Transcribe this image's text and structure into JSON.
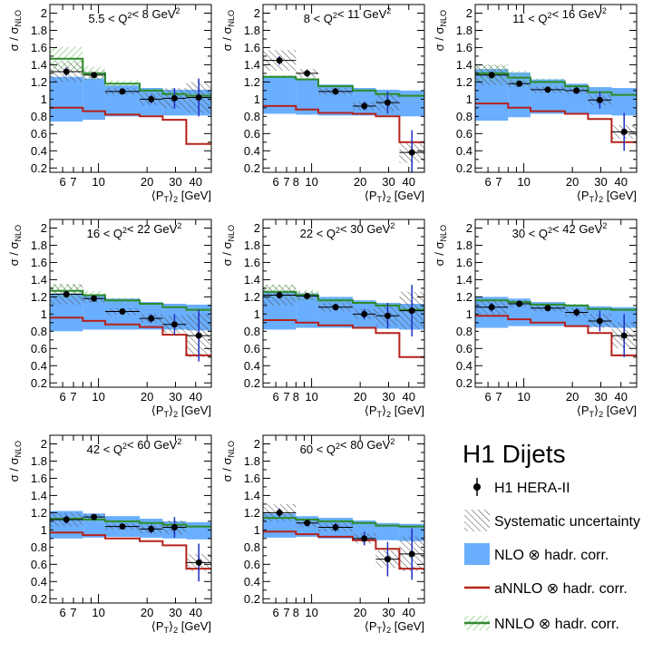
{
  "legend": {
    "title": "H1 Dijets",
    "entries": [
      {
        "label": "H1 HERA-II",
        "kind": "data"
      },
      {
        "label": "Systematic uncertainty",
        "kind": "hatch"
      },
      {
        "label": "NLO ⊗ hadr. corr.",
        "kind": "band",
        "color": "#6aaeff"
      },
      {
        "label": "aNNLO ⊗ hadr. corr.",
        "kind": "line",
        "color": "#b5221b"
      },
      {
        "label": "NNLO ⊗ hadr. corr.",
        "kind": "nnlo",
        "color": "#2e8b2e"
      }
    ]
  },
  "chart_data": {
    "type": "bar",
    "y_tick_labels": [
      "0.2",
      "0.4",
      "0.6",
      "0.8",
      "1",
      "1.2",
      "1.4",
      "1.6",
      "1.8",
      "2"
    ],
    "x_tick_labels": [
      "6",
      "7",
      "8",
      "10",
      "20",
      "30",
      "40"
    ],
    "x_bins": [
      [
        5,
        8
      ],
      [
        8,
        11
      ],
      [
        11,
        18
      ],
      [
        18,
        25
      ],
      [
        25,
        35
      ],
      [
        35,
        50
      ]
    ],
    "ylim": [
      0.15,
      2.1
    ],
    "panels": [
      {
        "label": "5.5 < Q²< 8 GeV²",
        "x_ticks": [
          "6",
          "7",
          "10",
          "20",
          "30",
          "40"
        ],
        "data": [
          1.32,
          1.28,
          1.09,
          1.0,
          1.01,
          1.02
        ],
        "stat": [
          0.05,
          0.03,
          0.03,
          0.05,
          0.12,
          0.22
        ],
        "sys": [
          0.12,
          0.05,
          0.04,
          0.07,
          0.12,
          0.18
        ],
        "nlo": [
          1.0,
          1.0,
          0.98,
          0.97,
          0.96,
          0.96
        ],
        "nlo_half": [
          0.26,
          0.24,
          0.18,
          0.16,
          0.15,
          0.15
        ],
        "annlo": [
          0.9,
          0.86,
          0.82,
          0.8,
          0.76,
          0.48
        ],
        "nnlo": [
          1.47,
          1.3,
          1.18,
          1.1,
          1.06,
          1.04
        ],
        "nnlo_half": [
          0.14,
          0.08,
          0.04,
          0.03,
          0.03,
          0.03
        ],
        "x_label": "⟨P",
        "x_label_sub1": "T",
        "x_label_mid": "⟩",
        "x_label_sub2": "2",
        "x_label_unit": " [GeV]",
        "y_label_main": "σ / σ",
        "y_label_sub": "NLO"
      },
      {
        "label": "8 < Q²< 11 GeV²",
        "x_ticks": [
          "6",
          "7",
          "8",
          "10",
          "20",
          "30",
          "40"
        ],
        "data": [
          1.45,
          1.3,
          1.09,
          0.92,
          0.96,
          0.38
        ],
        "stat": [
          0.05,
          0.04,
          0.04,
          0.05,
          0.13,
          0.26
        ],
        "sys": [
          0.12,
          0.05,
          0.04,
          0.05,
          0.1,
          0.12
        ],
        "nlo": [
          1.05,
          1.02,
          0.99,
          0.97,
          0.96,
          0.95
        ],
        "nlo_half": [
          0.22,
          0.2,
          0.18,
          0.16,
          0.15,
          0.15
        ],
        "annlo": [
          0.92,
          0.88,
          0.84,
          0.83,
          0.8,
          0.5
        ],
        "nnlo": [
          1.26,
          1.23,
          1.15,
          1.1,
          1.06,
          1.04
        ],
        "nnlo_half": [
          0.02,
          0.02,
          0.02,
          0.02,
          0.02,
          0.02
        ],
        "x_label": "⟨P",
        "x_label_sub1": "T",
        "x_label_mid": "⟩",
        "x_label_sub2": "2",
        "x_label_unit": " [GeV]",
        "y_label_main": "σ / σ",
        "y_label_sub": "NLO"
      },
      {
        "label": "11 < Q²< 16 GeV²",
        "x_ticks": [
          "6",
          "7",
          "10",
          "20",
          "30",
          "40"
        ],
        "data": [
          1.28,
          1.18,
          1.11,
          1.1,
          0.99,
          0.62
        ],
        "stat": [
          0.04,
          0.03,
          0.03,
          0.04,
          0.1,
          0.22
        ],
        "sys": [
          0.12,
          0.04,
          0.04,
          0.04,
          0.06,
          0.08
        ],
        "nlo": [
          1.05,
          1.05,
          1.03,
          1.0,
          0.98,
          0.97
        ],
        "nlo_half": [
          0.3,
          0.26,
          0.2,
          0.18,
          0.16,
          0.16
        ],
        "annlo": [
          0.95,
          0.9,
          0.86,
          0.83,
          0.77,
          0.5
        ],
        "nnlo": [
          1.3,
          1.25,
          1.2,
          1.15,
          1.08,
          1.05
        ],
        "nnlo_half": [
          0.1,
          0.08,
          0.04,
          0.02,
          0.02,
          0.02
        ],
        "x_label": "⟨P",
        "x_label_sub1": "T",
        "x_label_mid": "⟩",
        "x_label_sub2": "2",
        "x_label_unit": " [GeV]",
        "y_label_main": "σ / σ",
        "y_label_sub": "NLO"
      },
      {
        "label": "16 < Q²< 22 GeV²",
        "x_ticks": [
          "6",
          "7",
          "10",
          "20",
          "30",
          "40"
        ],
        "data": [
          1.23,
          1.18,
          1.03,
          0.95,
          0.88,
          0.75
        ],
        "stat": [
          0.04,
          0.03,
          0.03,
          0.05,
          0.12,
          0.3
        ],
        "sys": [
          0.12,
          0.05,
          0.04,
          0.05,
          0.1,
          0.25
        ],
        "nlo": [
          1.02,
          1.02,
          1.0,
          0.98,
          0.97,
          0.96
        ],
        "nlo_half": [
          0.22,
          0.2,
          0.18,
          0.16,
          0.15,
          0.15
        ],
        "annlo": [
          0.96,
          0.92,
          0.88,
          0.85,
          0.76,
          0.52
        ],
        "nnlo": [
          1.27,
          1.22,
          1.16,
          1.12,
          1.08,
          1.05
        ],
        "nnlo_half": [
          0.08,
          0.05,
          0.03,
          0.02,
          0.02,
          0.02
        ],
        "x_label": "⟨P",
        "x_label_sub1": "T",
        "x_label_mid": "⟩",
        "x_label_sub2": "2",
        "x_label_unit": " [GeV]",
        "y_label_main": "σ / σ",
        "y_label_sub": "NLO"
      },
      {
        "label": "22 < Q²< 30 GeV²",
        "x_ticks": [
          "6",
          "7",
          "8",
          "10",
          "20",
          "30",
          "40"
        ],
        "data": [
          1.22,
          1.21,
          1.08,
          1.0,
          0.98,
          1.04
        ],
        "stat": [
          0.04,
          0.03,
          0.04,
          0.06,
          0.15,
          0.3
        ],
        "sys": [
          0.12,
          0.05,
          0.05,
          0.06,
          0.12,
          0.22
        ],
        "nlo": [
          1.04,
          1.04,
          1.02,
          1.0,
          0.98,
          0.97
        ],
        "nlo_half": [
          0.22,
          0.2,
          0.18,
          0.16,
          0.15,
          0.15
        ],
        "annlo": [
          0.93,
          0.9,
          0.87,
          0.84,
          0.78,
          0.5
        ],
        "nnlo": [
          1.26,
          1.22,
          1.16,
          1.13,
          1.1,
          1.05
        ],
        "nnlo_half": [
          0.08,
          0.06,
          0.03,
          0.02,
          0.02,
          0.02
        ],
        "x_label": "⟨P",
        "x_label_sub1": "T",
        "x_label_mid": "⟩",
        "x_label_sub2": "2",
        "x_label_unit": " [GeV]",
        "y_label_main": "σ / σ",
        "y_label_sub": "NLO"
      },
      {
        "label": "30 < Q²< 42 GeV²",
        "x_ticks": [
          "6",
          "7",
          "10",
          "20",
          "30",
          "40"
        ],
        "data": [
          1.08,
          1.12,
          1.07,
          1.02,
          0.92,
          0.75
        ],
        "stat": [
          0.05,
          0.03,
          0.03,
          0.05,
          0.12,
          0.25
        ],
        "sys": [
          0.08,
          0.04,
          0.04,
          0.05,
          0.08,
          0.15
        ],
        "nlo": [
          1.02,
          1.02,
          1.0,
          0.98,
          0.97,
          0.96
        ],
        "nlo_half": [
          0.18,
          0.16,
          0.14,
          0.13,
          0.12,
          0.12
        ],
        "annlo": [
          0.98,
          0.94,
          0.9,
          0.86,
          0.78,
          0.52
        ],
        "nnlo": [
          1.16,
          1.14,
          1.11,
          1.1,
          1.06,
          1.05
        ],
        "nnlo_half": [
          0.02,
          0.02,
          0.02,
          0.02,
          0.02,
          0.02
        ],
        "x_label": "⟨P",
        "x_label_sub1": "T",
        "x_label_mid": "⟩",
        "x_label_sub2": "2",
        "x_label_unit": " [GeV]",
        "y_label_main": "σ / σ",
        "y_label_sub": "NLO"
      },
      {
        "label": "42 < Q²< 60 GeV²",
        "x_ticks": [
          "6",
          "7",
          "10",
          "20",
          "30",
          "40"
        ],
        "data": [
          1.12,
          1.15,
          1.04,
          1.01,
          1.03,
          0.62
        ],
        "stat": [
          0.05,
          0.03,
          0.03,
          0.05,
          0.12,
          0.22
        ],
        "sys": [
          0.08,
          0.04,
          0.04,
          0.05,
          0.08,
          0.1
        ],
        "nlo": [
          1.06,
          1.05,
          1.04,
          1.02,
          1.0,
          0.99
        ],
        "nlo_half": [
          0.16,
          0.14,
          0.12,
          0.11,
          0.1,
          0.1
        ],
        "annlo": [
          0.97,
          0.94,
          0.9,
          0.87,
          0.82,
          0.55
        ],
        "nnlo": [
          1.13,
          1.12,
          1.1,
          1.08,
          1.06,
          1.04
        ],
        "nnlo_half": [
          0.02,
          0.02,
          0.02,
          0.02,
          0.02,
          0.02
        ],
        "x_label": "⟨P",
        "x_label_sub1": "T",
        "x_label_mid": "⟩",
        "x_label_sub2": "2",
        "x_label_unit": " [GeV]",
        "y_label_main": "σ / σ",
        "y_label_sub": "NLO"
      },
      {
        "label": "60 < Q²< 80 GeV²",
        "x_ticks": [
          "6",
          "7",
          "8",
          "10",
          "20",
          "30",
          "40"
        ],
        "data": [
          1.2,
          1.08,
          1.03,
          0.9,
          0.66,
          0.72
        ],
        "stat": [
          0.05,
          0.04,
          0.05,
          0.08,
          0.2,
          0.3
        ],
        "sys": [
          0.1,
          0.05,
          0.05,
          0.06,
          0.1,
          0.2
        ],
        "nlo": [
          1.05,
          1.04,
          1.02,
          1.0,
          0.98,
          0.97
        ],
        "nlo_half": [
          0.14,
          0.12,
          0.12,
          0.11,
          0.1,
          0.1
        ],
        "annlo": [
          0.98,
          0.95,
          0.92,
          0.88,
          0.78,
          0.55
        ],
        "nnlo": [
          1.14,
          1.12,
          1.1,
          1.08,
          1.05,
          1.04
        ],
        "nnlo_half": [
          0.02,
          0.02,
          0.02,
          0.02,
          0.02,
          0.02
        ],
        "x_label": "⟨P",
        "x_label_sub1": "T",
        "x_label_mid": "⟩",
        "x_label_sub2": "2",
        "x_label_unit": " [GeV]",
        "y_label_main": "σ / σ",
        "y_label_sub": "NLO"
      }
    ]
  }
}
